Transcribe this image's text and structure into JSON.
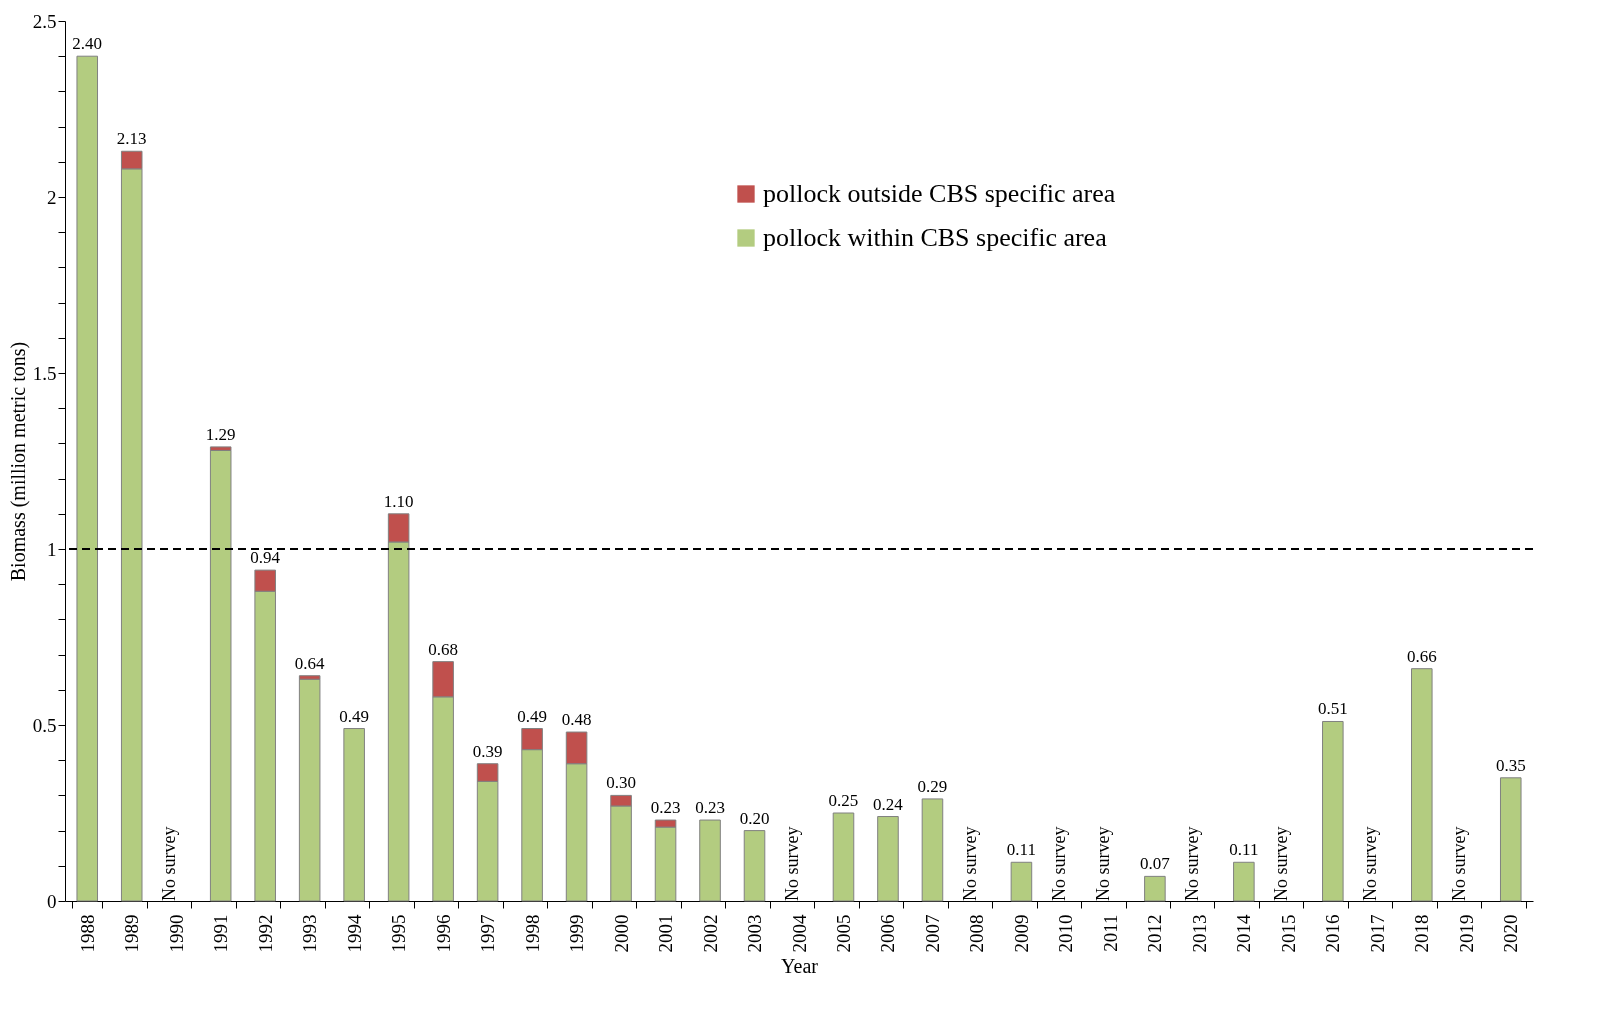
{
  "chart_data": {
    "type": "bar",
    "stacked": true,
    "xlabel": "Year",
    "ylabel": "Biomass (million metric tons)",
    "categories": [
      "1988",
      "1989",
      "1990",
      "1991",
      "1992",
      "1993",
      "1994",
      "1995",
      "1996",
      "1997",
      "1998",
      "1999",
      "2000",
      "2001",
      "2002",
      "2003",
      "2004",
      "2005",
      "2006",
      "2007",
      "2008",
      "2009",
      "2010",
      "2011",
      "2012",
      "2013",
      "2014",
      "2015",
      "2016",
      "2017",
      "2018",
      "2019",
      "2020"
    ],
    "series": [
      {
        "name": "pollock within CBS specific area",
        "color": "#b3cc80",
        "values": [
          2.4,
          2.08,
          null,
          1.28,
          0.88,
          0.63,
          0.49,
          1.02,
          0.58,
          0.34,
          0.43,
          0.39,
          0.27,
          0.21,
          0.23,
          0.2,
          null,
          0.25,
          0.24,
          0.29,
          null,
          0.11,
          null,
          null,
          0.07,
          null,
          0.11,
          null,
          0.51,
          null,
          0.66,
          null,
          0.35
        ]
      },
      {
        "name": "pollock outside CBS specific area",
        "color": "#c0504d",
        "values": [
          null,
          0.05,
          null,
          0.01,
          0.06,
          0.01,
          null,
          0.08,
          0.1,
          0.05,
          0.06,
          0.09,
          0.03,
          0.02,
          null,
          null,
          null,
          null,
          null,
          null,
          null,
          null,
          null,
          null,
          null,
          null,
          null,
          null,
          null,
          null,
          null,
          null,
          null
        ]
      }
    ],
    "totals": [
      "2.40",
      "2.13",
      null,
      "1.29",
      "0.94",
      "0.64",
      "0.49",
      "1.10",
      "0.68",
      "0.39",
      "0.49",
      "0.48",
      "0.30",
      "0.23",
      "0.23",
      "0.20",
      null,
      "0.25",
      "0.24",
      "0.29",
      null,
      "0.11",
      null,
      null,
      "0.07",
      null,
      "0.11",
      null,
      "0.51",
      null,
      "0.66",
      null,
      "0.35"
    ],
    "annotations": [
      "No survey",
      "No survey",
      "No survey",
      "No survey",
      "No survey",
      "No survey",
      "No survey",
      "No survey",
      "No survey"
    ],
    "ref_lines": [
      {
        "axis": "y",
        "value": 1,
        "label": null,
        "color": "#000000",
        "line_style": "dashed"
      }
    ],
    "ylim": [
      0,
      2.5
    ],
    "yticks": [
      0,
      {
        "value": 0.1,
        "label": null
      },
      {
        "value": 0.2,
        "label": null
      },
      {
        "value": 0.3,
        "label": null
      },
      {
        "value": 0.4,
        "label": null
      },
      0.5,
      {
        "value": 0.6,
        "label": null
      },
      {
        "value": 0.7,
        "label": null
      },
      {
        "value": 0.8,
        "label": null
      },
      {
        "value": 0.9,
        "label": null
      },
      1,
      {
        "value": 1.1,
        "label": null
      },
      {
        "value": 1.2,
        "label": null
      },
      {
        "value": 1.3,
        "label": null
      },
      {
        "value": 1.4,
        "label": null
      },
      1.5,
      {
        "value": 1.6,
        "label": null
      },
      {
        "value": 1.7,
        "label": null
      },
      {
        "value": 1.8,
        "label": null
      },
      {
        "value": 1.9,
        "label": null
      },
      2,
      {
        "value": 2.1,
        "label": null
      },
      {
        "value": 2.2,
        "label": null
      },
      {
        "value": 2.3,
        "label": null
      },
      {
        "value": 2.4,
        "label": null
      },
      2.5
    ],
    "legend": "top right",
    "grid": false
  }
}
